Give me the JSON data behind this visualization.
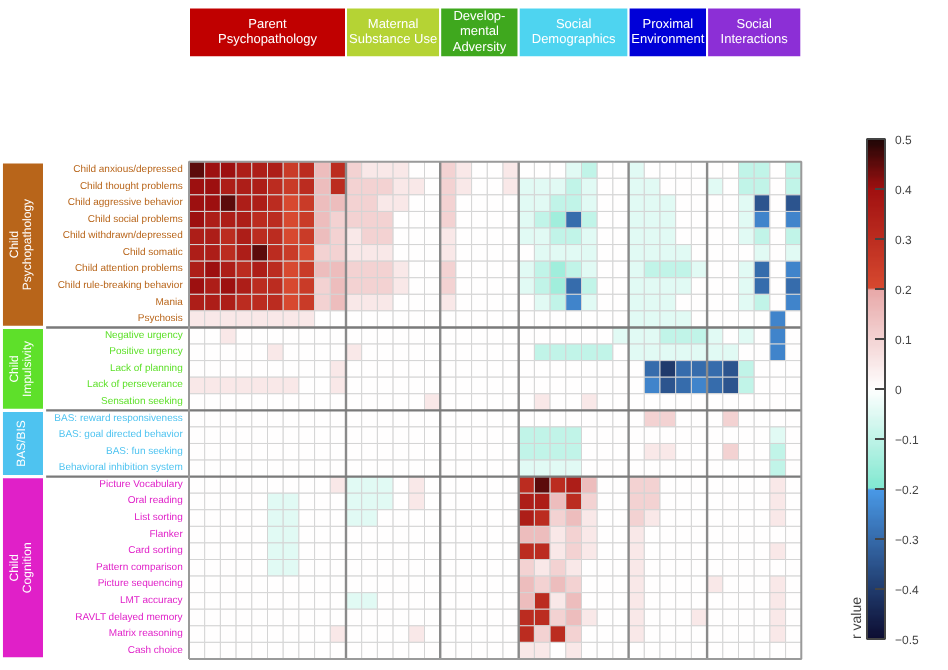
{
  "chart_data": {
    "type": "heatmap",
    "clabel": "r value",
    "annotations": [
      "Parent\nPsychopathology",
      "Maternal\nSubstance Use",
      "Develop-\nmental\nAdversity",
      "Social\nDemographics",
      "Proximal\nEnvironment",
      "Social\nInteractions",
      "Child\nPsychopathology",
      "Child\nImpulsivity",
      "BAS/BIS",
      "Child\nCognition"
    ],
    "categories": [
      null,
      null,
      null,
      null,
      null,
      null,
      null,
      null,
      null,
      null,
      null,
      null,
      null,
      null,
      null,
      null,
      null,
      null,
      null,
      null,
      null,
      null,
      null,
      null,
      null,
      null,
      null,
      null,
      null,
      null,
      null,
      null,
      null,
      null,
      null,
      null,
      null,
      null,
      null
    ],
    "y_categories": [
      "Child anxious/depressed",
      "Child thought problems",
      "Child aggressive behavior",
      "Child social problems",
      "Child withdrawn/depressed",
      "Child somatic",
      "Child attention problems",
      "Child rule-breaking behavior",
      "Mania",
      "Psychosis",
      "Negative urgency",
      "Positive urgency",
      "Lack of planning",
      "Lack of perseverance",
      "Sensation seeking",
      "BAS: reward responsiveness",
      "BAS: goal directed behavior",
      "BAS: fun seeking",
      "Behavioral inhibition system",
      "Picture Vocabulary",
      "Oral reading",
      "List sorting",
      "Flanker",
      "Card sorting",
      "Pattern comparison",
      "Picture sequencing",
      "LMT accuracy",
      "RAVLT delayed memory",
      "Matrix reasoning",
      "Cash choice"
    ],
    "clim": [
      -0.5,
      0.5
    ],
    "cticks": [
      -0.5,
      -0.4,
      -0.3,
      -0.2,
      -0.1,
      0,
      0.1,
      0.2,
      0.3,
      0.4,
      0.5
    ],
    "cells": [
      [
        0.45,
        0.4,
        0.4,
        0.35,
        0.35,
        0.35,
        0.25,
        0.3,
        0.15,
        0.3,
        0.1,
        0.05,
        0.05,
        0.05,
        0,
        0,
        0.1,
        0.05,
        0,
        0,
        0.05,
        0,
        0,
        0,
        -0.05,
        -0.1,
        0,
        0,
        -0.05,
        0,
        0,
        0,
        0,
        0,
        0,
        -0.1,
        -0.1,
        0,
        -0.1
      ],
      [
        0.4,
        0.4,
        0.35,
        0.35,
        0.35,
        0.3,
        0.25,
        0.3,
        0.15,
        0.3,
        0.1,
        0.1,
        0.1,
        0.05,
        0.05,
        0,
        0.1,
        0.05,
        0,
        0,
        0.05,
        -0.05,
        -0.05,
        -0.05,
        -0.1,
        -0.05,
        0,
        0,
        -0.05,
        -0.05,
        0,
        0,
        0,
        -0.05,
        0,
        -0.1,
        -0.1,
        0,
        -0.1
      ],
      [
        0.4,
        0.4,
        0.45,
        0.35,
        0.35,
        0.3,
        0.2,
        0.25,
        0.15,
        0.15,
        0.1,
        0.1,
        0.05,
        0.05,
        0,
        0,
        0.1,
        0,
        0,
        0,
        0,
        -0.05,
        -0.05,
        -0.1,
        -0.1,
        -0.05,
        0,
        0,
        -0.05,
        -0.05,
        -0.05,
        0,
        0,
        0,
        0,
        -0.05,
        -0.35,
        0,
        -0.35
      ],
      [
        0.4,
        0.35,
        0.35,
        0.35,
        0.3,
        0.3,
        0.2,
        0.25,
        0.15,
        0.1,
        0.1,
        0.1,
        0.1,
        0,
        0,
        0,
        0.1,
        0,
        0,
        0,
        0,
        -0.05,
        -0.1,
        -0.15,
        -0.3,
        -0.1,
        0,
        0,
        -0.05,
        -0.05,
        -0.05,
        0,
        0,
        0,
        0,
        -0.05,
        -0.25,
        0,
        -0.25
      ],
      [
        0.35,
        0.35,
        0.3,
        0.35,
        0.3,
        0.3,
        0.2,
        0.25,
        0.15,
        0.1,
        0.05,
        0.1,
        0.1,
        0,
        0,
        0,
        0.05,
        0,
        0,
        0,
        0,
        -0.05,
        -0.05,
        -0.1,
        -0.1,
        -0.05,
        0,
        0,
        -0.05,
        -0.05,
        -0.05,
        0,
        0,
        0,
        0,
        -0.05,
        -0.1,
        0,
        -0.1
      ],
      [
        0.35,
        0.35,
        0.3,
        0.35,
        0.45,
        0.3,
        0.25,
        0.2,
        0.1,
        0.1,
        0.05,
        0.05,
        0.05,
        0,
        0,
        0,
        0.05,
        0,
        0,
        0,
        0,
        0,
        -0.05,
        -0.05,
        -0.05,
        -0.05,
        0,
        0,
        -0.05,
        -0.05,
        -0.05,
        -0.05,
        0,
        0,
        0,
        0,
        -0.05,
        0,
        -0.05
      ],
      [
        0.35,
        0.4,
        0.35,
        0.3,
        0.35,
        0.3,
        0.2,
        0.25,
        0.15,
        0.15,
        0.1,
        0.1,
        0.1,
        0.05,
        0,
        0,
        0.1,
        0,
        0,
        0,
        0,
        -0.05,
        -0.1,
        -0.15,
        -0.1,
        -0.05,
        0,
        0,
        -0.05,
        -0.1,
        -0.1,
        -0.1,
        -0.05,
        0,
        0,
        -0.05,
        -0.3,
        0,
        -0.25
      ],
      [
        0.4,
        0.35,
        0.4,
        0.35,
        0.3,
        0.3,
        0.2,
        0.25,
        0.1,
        0.15,
        0.1,
        0.1,
        0.1,
        0.05,
        0,
        0,
        0.1,
        0,
        0,
        0,
        0,
        -0.05,
        -0.1,
        -0.15,
        -0.3,
        -0.1,
        0,
        0,
        -0.05,
        -0.05,
        -0.05,
        -0.05,
        0,
        0,
        0,
        -0.05,
        -0.3,
        0,
        -0.3
      ],
      [
        0.35,
        0.35,
        0.35,
        0.3,
        0.3,
        0.3,
        0.2,
        0.25,
        0.1,
        0.15,
        0.05,
        0.05,
        0.05,
        0,
        0,
        0,
        0.05,
        0,
        0,
        0,
        0,
        0,
        -0.05,
        -0.1,
        -0.25,
        -0.05,
        0,
        0,
        -0.05,
        -0.05,
        -0.05,
        0,
        0,
        0,
        0,
        -0.05,
        -0.1,
        0,
        -0.25
      ],
      [
        0.05,
        0.05,
        0.05,
        0.05,
        0.05,
        0.05,
        0.05,
        0.05,
        0,
        0,
        0,
        0,
        0,
        0,
        0,
        0,
        0,
        0,
        0,
        0,
        0,
        0,
        0,
        0,
        0,
        0,
        0,
        0,
        -0.05,
        -0.05,
        -0.05,
        -0.05,
        0,
        0,
        0,
        0,
        0,
        -0.25,
        0
      ],
      [
        0,
        0,
        0.05,
        0,
        0,
        0,
        0,
        0,
        0,
        0,
        0,
        0,
        0,
        0,
        0,
        0,
        0,
        0,
        0,
        0,
        0,
        0,
        0,
        0,
        0,
        0,
        0,
        -0.05,
        -0.05,
        -0.05,
        -0.1,
        -0.1,
        -0.1,
        -0.05,
        0,
        -0.05,
        0,
        -0.25,
        0
      ],
      [
        0,
        0,
        0,
        0,
        0,
        0.05,
        0,
        0,
        0,
        0,
        0.05,
        0,
        0,
        0,
        0,
        0,
        0,
        0,
        0,
        0,
        0,
        0,
        -0.1,
        -0.1,
        -0.1,
        -0.1,
        -0.1,
        0,
        -0.05,
        -0.05,
        -0.05,
        -0.05,
        -0.05,
        -0.05,
        -0.05,
        0,
        0,
        -0.25,
        0
      ],
      [
        0,
        0,
        0,
        0,
        0,
        0,
        0,
        0,
        0,
        0.05,
        0,
        0,
        0,
        0,
        0,
        0,
        0,
        0,
        0,
        0,
        0,
        0,
        0,
        0,
        0,
        0,
        0,
        0,
        0,
        -0.3,
        -0.4,
        -0.3,
        -0.3,
        -0.3,
        -0.35,
        -0.1,
        0,
        0,
        0
      ],
      [
        0.05,
        0.05,
        0.05,
        0.05,
        0.05,
        0.05,
        0.05,
        0,
        0,
        0.05,
        0,
        0,
        0,
        0,
        0,
        0,
        0,
        0,
        0,
        0,
        0,
        0,
        0,
        0,
        0,
        0,
        0,
        0,
        0,
        -0.25,
        -0.35,
        -0.3,
        -0.25,
        -0.3,
        -0.35,
        -0.1,
        0,
        0,
        0
      ],
      [
        0,
        0,
        0,
        0,
        0,
        0,
        0,
        0,
        0,
        0,
        0,
        0,
        0,
        0,
        0,
        0.05,
        0,
        0,
        0,
        0,
        0,
        0,
        0.05,
        0,
        0,
        0.05,
        0,
        0,
        0,
        0,
        0,
        0,
        0,
        0,
        0,
        0,
        0,
        0,
        0
      ],
      [
        0,
        0,
        0,
        0,
        0,
        0,
        0,
        0,
        0,
        0,
        0,
        0,
        0,
        0,
        0,
        0,
        0,
        0,
        0,
        0,
        0,
        0,
        0,
        0,
        0,
        0,
        0,
        0,
        0,
        0.1,
        0.1,
        0,
        0,
        0,
        0.1,
        0,
        0,
        0,
        0
      ],
      [
        0,
        0,
        0,
        0,
        0,
        0,
        0,
        0,
        0,
        0,
        0,
        0,
        0,
        0,
        0,
        0,
        0,
        0,
        0,
        0,
        0,
        -0.1,
        -0.1,
        -0.1,
        -0.1,
        0,
        0,
        0,
        0,
        0,
        0,
        0,
        0,
        0,
        0,
        0,
        0,
        -0.05,
        0
      ],
      [
        0,
        0,
        0,
        0,
        0,
        0,
        0,
        0,
        0,
        0,
        0,
        0,
        0,
        0,
        0,
        0,
        0,
        0,
        0,
        0,
        0,
        -0.1,
        -0.1,
        -0.1,
        -0.1,
        0,
        0,
        0,
        0,
        0.05,
        0.05,
        0,
        0,
        0,
        0.1,
        0,
        0,
        -0.1,
        0
      ],
      [
        0,
        0,
        0,
        0,
        0,
        0,
        0,
        0,
        0,
        0,
        0,
        0,
        0,
        0,
        0,
        0,
        0,
        0,
        0,
        0,
        0,
        -0.05,
        -0.05,
        -0.05,
        -0.05,
        0,
        0,
        0,
        0,
        0,
        0,
        0,
        0,
        0,
        0,
        0,
        0,
        -0.1,
        0
      ],
      [
        0,
        0,
        0,
        0,
        0,
        0,
        0,
        0,
        0,
        0.05,
        -0.05,
        -0.05,
        -0.05,
        0,
        0.05,
        0,
        0,
        0,
        0,
        0,
        0,
        0.3,
        0.45,
        0.3,
        0.35,
        0.15,
        0,
        0,
        0.1,
        0.1,
        0,
        0,
        0,
        0,
        0,
        0,
        0,
        0.05,
        0
      ],
      [
        0,
        0,
        0,
        0,
        0,
        -0.05,
        -0.05,
        0,
        0,
        0,
        -0.05,
        -0.05,
        -0.05,
        0,
        0.05,
        0,
        0,
        0,
        0,
        0,
        0,
        0.35,
        0.35,
        0.15,
        0.3,
        0.1,
        0,
        0,
        0.1,
        0.1,
        0,
        0,
        0,
        0,
        0,
        0,
        0,
        0.05,
        0
      ],
      [
        0,
        0,
        0,
        0,
        0,
        -0.05,
        -0.05,
        0,
        0,
        0,
        -0.05,
        -0.05,
        0,
        0,
        0,
        0,
        0,
        0,
        0,
        0,
        0,
        0.35,
        0.3,
        0.1,
        0.15,
        0.05,
        0,
        0,
        0.1,
        0.05,
        0,
        0,
        0,
        0,
        0,
        0,
        0,
        0.05,
        0
      ],
      [
        0,
        0,
        0,
        0,
        0,
        -0.05,
        -0.05,
        0,
        0,
        0,
        0,
        0,
        0,
        0,
        0,
        0,
        0,
        0,
        0,
        0,
        0,
        0.15,
        0.15,
        0.05,
        0.1,
        0.05,
        0,
        0,
        0.05,
        0,
        0,
        0,
        0,
        0,
        0,
        0,
        0,
        0,
        0
      ],
      [
        0,
        0,
        0,
        0,
        0,
        -0.05,
        -0.05,
        0,
        0,
        0,
        0,
        0,
        0,
        0,
        0,
        0,
        0,
        0,
        0,
        0,
        0,
        0.3,
        0.3,
        0.05,
        0.1,
        0.05,
        0,
        0,
        0.05,
        0,
        0,
        0,
        0,
        0,
        0,
        0,
        0,
        0.05,
        0
      ],
      [
        0,
        0,
        0,
        0,
        0,
        -0.05,
        -0.05,
        0,
        0,
        0,
        0,
        0,
        0,
        0,
        0,
        0,
        0,
        0,
        0,
        0,
        0,
        0.1,
        0.05,
        0.1,
        0.05,
        0,
        0,
        0,
        0.05,
        0,
        0,
        0,
        0,
        0,
        0,
        0,
        0,
        0,
        0
      ],
      [
        0,
        0,
        0,
        0,
        0,
        0,
        0,
        0,
        0,
        0,
        0,
        0,
        0,
        0,
        0,
        0,
        0,
        0,
        0,
        0,
        0,
        0.15,
        0.1,
        0.15,
        0.1,
        0,
        0,
        0,
        0.05,
        0,
        0,
        0,
        0,
        0.05,
        0,
        0,
        0,
        0.05,
        0
      ],
      [
        0,
        0,
        0,
        0,
        0,
        0,
        0,
        0,
        0,
        0,
        -0.05,
        -0.05,
        0,
        0,
        0,
        0,
        0,
        0,
        0,
        0,
        0,
        0.15,
        0.3,
        0.05,
        0.15,
        0,
        0,
        0,
        0.05,
        0,
        0,
        0,
        0,
        0,
        0,
        0,
        0,
        0.05,
        0
      ],
      [
        0,
        0,
        0,
        0,
        0,
        0,
        0,
        0,
        0,
        0,
        0,
        0,
        0,
        0,
        0,
        0,
        0,
        0,
        0,
        0,
        0,
        0.3,
        0.3,
        0.1,
        0.15,
        0.05,
        0,
        0,
        0.05,
        0,
        0,
        0,
        0.05,
        0,
        0,
        0,
        0,
        0.05,
        0
      ],
      [
        0,
        0,
        0,
        0,
        0,
        0,
        0,
        0,
        0,
        0.05,
        0,
        0,
        0,
        0,
        0.05,
        0,
        0,
        0,
        0,
        0,
        0,
        0.3,
        0.1,
        0.3,
        0.1,
        0,
        0,
        0,
        0.05,
        0,
        0,
        0,
        0,
        0,
        0,
        0,
        0,
        0.05,
        0
      ],
      [
        0,
        0,
        0,
        0,
        0,
        0,
        0,
        0,
        0,
        0,
        0,
        0,
        0,
        0,
        0,
        0,
        0,
        0,
        0,
        0,
        0,
        0.05,
        0.05,
        0,
        0.05,
        0,
        0,
        0,
        0,
        0,
        0,
        0,
        0,
        0,
        0,
        0,
        0,
        0,
        0
      ]
    ]
  }
}
